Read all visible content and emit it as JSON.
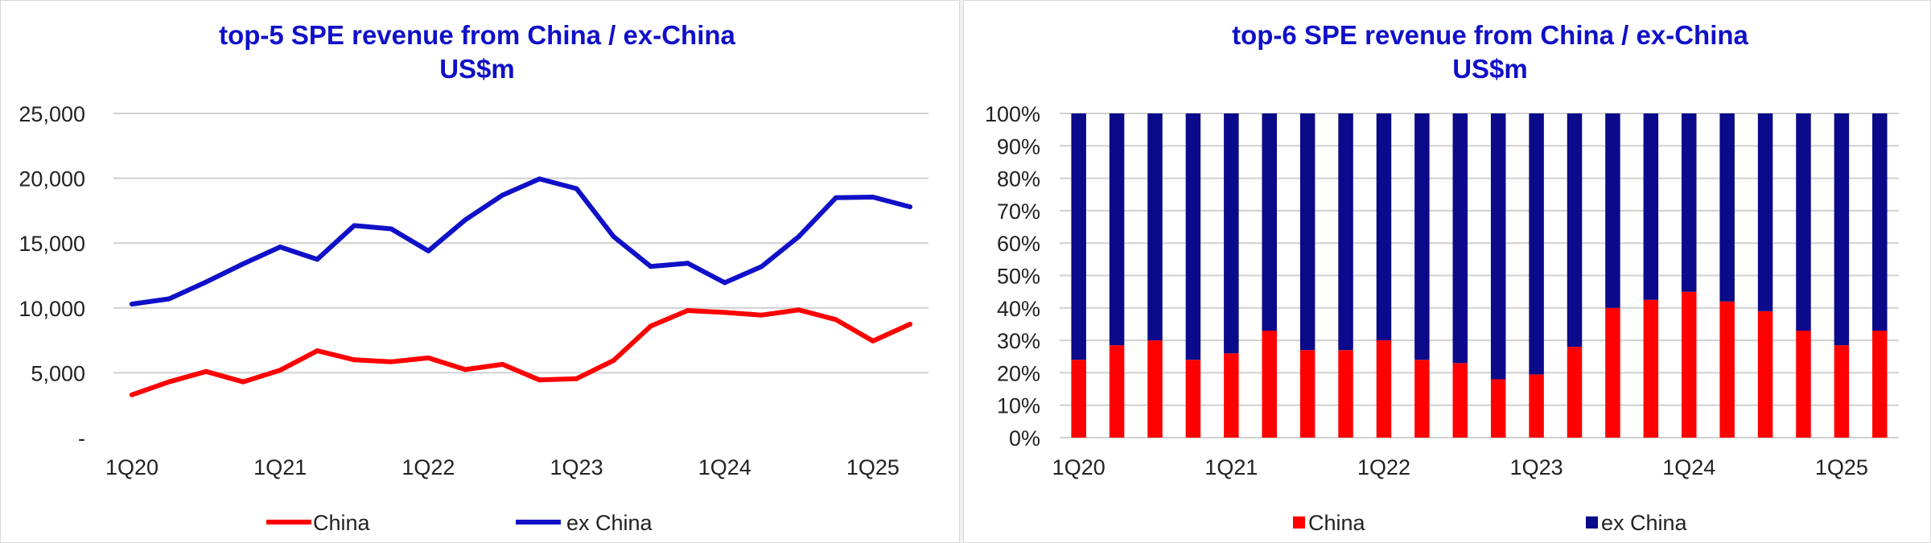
{
  "chart_data": [
    {
      "type": "line",
      "title": "top-5 SPE revenue from China / ex-China",
      "subtitle": "US$m",
      "x": [
        "1Q20",
        "2Q20",
        "3Q20",
        "4Q20",
        "1Q21",
        "2Q21",
        "3Q21",
        "4Q21",
        "1Q22",
        "2Q22",
        "3Q22",
        "4Q22",
        "1Q23",
        "2Q23",
        "3Q23",
        "4Q23",
        "1Q24",
        "2Q24",
        "3Q24",
        "4Q24",
        "1Q25",
        "2Q25"
      ],
      "x_tick_labels": [
        "1Q20",
        "1Q21",
        "1Q22",
        "1Q23",
        "1Q24",
        "1Q25"
      ],
      "ylim": [
        0,
        25000
      ],
      "y_tick_labels": [
        "-",
        "5,000",
        "10,000",
        "15,000",
        "20,000",
        "25,000"
      ],
      "grid": true,
      "legend_position": "bottom",
      "series": [
        {
          "name": "China",
          "color": "#ff0000",
          "values": [
            3300,
            4300,
            5100,
            4300,
            5200,
            6700,
            6000,
            5850,
            6150,
            5250,
            5650,
            4450,
            4550,
            5950,
            8600,
            9800,
            9650,
            9450,
            9850,
            9100,
            7450,
            8750
          ]
        },
        {
          "name": "ex China",
          "color": "#1010c8",
          "values": [
            10300,
            10700,
            12000,
            13400,
            14700,
            13750,
            16350,
            16100,
            14400,
            16800,
            18700,
            19950,
            19200,
            15500,
            13200,
            13450,
            11950,
            13200,
            15500,
            18500,
            18550,
            17800
          ]
        }
      ]
    },
    {
      "type": "bar",
      "stacked": true,
      "title": "top-6 SPE revenue from China / ex-China",
      "subtitle": "US$m",
      "categories": [
        "1Q20",
        "2Q20",
        "3Q20",
        "4Q20",
        "1Q21",
        "2Q21",
        "3Q21",
        "4Q21",
        "1Q22",
        "2Q22",
        "3Q22",
        "4Q22",
        "1Q23",
        "2Q23",
        "3Q23",
        "4Q23",
        "1Q24",
        "2Q24",
        "3Q24",
        "4Q24",
        "1Q25",
        "2Q25"
      ],
      "x_tick_labels": [
        "1Q20",
        "1Q21",
        "1Q22",
        "1Q23",
        "1Q24",
        "1Q25"
      ],
      "ylim": [
        0,
        100
      ],
      "y_tick_labels": [
        "0%",
        "10%",
        "20%",
        "30%",
        "40%",
        "50%",
        "60%",
        "70%",
        "80%",
        "90%",
        "100%"
      ],
      "grid": true,
      "legend_position": "bottom",
      "series": [
        {
          "name": "China",
          "color": "#ff0000",
          "values": [
            24,
            28.5,
            30,
            24,
            26,
            33,
            27,
            27,
            30,
            24,
            23,
            18,
            19.5,
            28,
            40,
            42.5,
            45,
            42,
            39,
            33,
            28.5,
            33
          ]
        },
        {
          "name": "ex China",
          "color": "#0a0a8a",
          "values": [
            76,
            71.5,
            70,
            76,
            74,
            67,
            73,
            73,
            70,
            76,
            77,
            82,
            80.5,
            72,
            60,
            57.5,
            55,
            58,
            61,
            67,
            71.5,
            67
          ]
        }
      ]
    }
  ]
}
